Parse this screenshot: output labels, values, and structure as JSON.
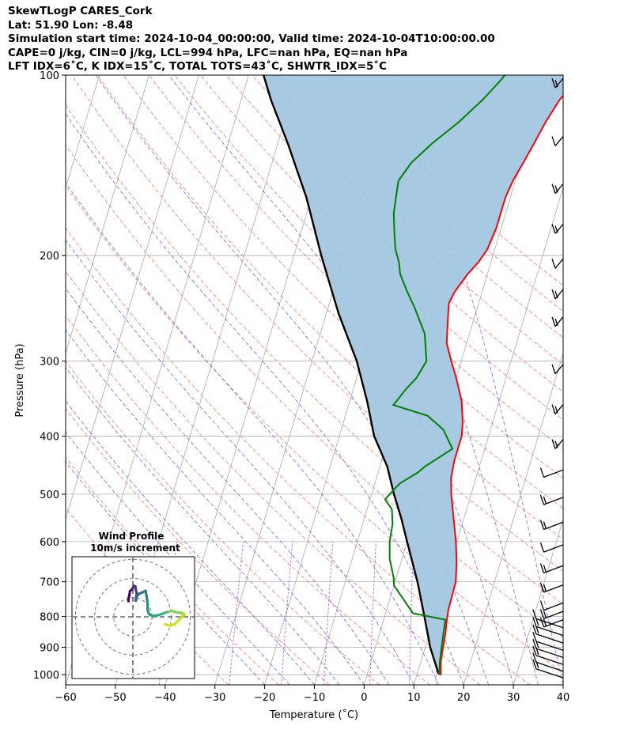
{
  "header": {
    "line1": "SkewTLogP CARES_Cork",
    "line2": "Lat: 51.90   Lon: -8.48",
    "line3": "Simulation start time: 2024-10-04_00:00:00, Valid time: 2024-10-04T10:00:00.00",
    "line4": "CAPE=0 j/kg, CIN=0 j/kg, LCL=994 hPa, LFC=nan hPa, EQ=nan hPa",
    "line5": "LFT IDX=6˚C, K IDX=15˚C, TOTAL TOTS=43˚C, SHWTR_IDX=5˚C"
  },
  "chart_data": [
    {
      "type": "line",
      "subtype": "skew-t log-p",
      "xlabel": "Temperature (˚C)",
      "ylabel": "Pressure (hPa)",
      "xlim": [
        -60,
        40
      ],
      "ylim": [
        1040,
        100
      ],
      "y_scale": "log",
      "x_ticks": [
        "−60",
        "−50",
        "−40",
        "−30",
        "−20",
        "−10",
        "0",
        "10",
        "20",
        "30",
        "40"
      ],
      "y_ticks": [
        "100",
        "200",
        "300",
        "400",
        "500",
        "600",
        "700",
        "800",
        "900",
        "1000"
      ],
      "grid": true,
      "colors": {
        "temperature": "#ff0000",
        "dewpoint": "#008000",
        "parcel": "#000000",
        "shading": "#a3c6e0",
        "dry_adiabats": "#ff6e6e",
        "moist_adiabats": "#5a5aff",
        "mixing_ratio": "#a040c0"
      },
      "series": [
        {
          "key": "temperature",
          "points": [
            [
              14.8,
              1000
            ],
            [
              14.0,
              950
            ],
            [
              13.6,
              900
            ],
            [
              13.2,
              850
            ],
            [
              12.8,
              820
            ],
            [
              12.6,
              800
            ],
            [
              12.4,
              780
            ],
            [
              12.2,
              700
            ],
            [
              11.2,
              650
            ],
            [
              9.8,
              600
            ],
            [
              8.0,
              550
            ],
            [
              6.0,
              500
            ],
            [
              5.0,
              470
            ],
            [
              4.6,
              440
            ],
            [
              4.6,
              400
            ],
            [
              4.0,
              380
            ],
            [
              2.5,
              350
            ],
            [
              0.0,
              320
            ],
            [
              -2.0,
              300
            ],
            [
              -4.0,
              280
            ],
            [
              -5.0,
              260
            ],
            [
              -6.0,
              240
            ],
            [
              -5.5,
              230
            ],
            [
              -4.0,
              215
            ],
            [
              -2.5,
              205
            ],
            [
              -1.5,
              195
            ],
            [
              -1.0,
              180
            ],
            [
              -1.0,
              170
            ],
            [
              -1.0,
              160
            ],
            [
              -0.5,
              150
            ],
            [
              0.5,
              140
            ],
            [
              1.5,
              130
            ],
            [
              2.5,
              120
            ],
            [
              4.0,
              110
            ],
            [
              6.0,
              103
            ],
            [
              7.0,
              100
            ]
          ]
        },
        {
          "key": "dewpoint",
          "points": [
            [
              14.5,
              1000
            ],
            [
              13.8,
              950
            ],
            [
              13.3,
              900
            ],
            [
              12.8,
              850
            ],
            [
              12.4,
              810
            ],
            [
              5.5,
              790
            ],
            [
              0.0,
              710
            ],
            [
              -0.5,
              690
            ],
            [
              -2.5,
              640
            ],
            [
              -3.5,
              600
            ],
            [
              -4.0,
              560
            ],
            [
              -5.0,
              530
            ],
            [
              -7.0,
              510
            ],
            [
              -5.0,
              480
            ],
            [
              -2.0,
              460
            ],
            [
              -1.0,
              450
            ],
            [
              3.5,
              420
            ],
            [
              0.5,
              390
            ],
            [
              -3.5,
              370
            ],
            [
              -11.0,
              355
            ],
            [
              -9.5,
              335
            ],
            [
              -8.0,
              320
            ],
            [
              -7.0,
              300
            ],
            [
              -9.0,
              270
            ],
            [
              -12.5,
              245
            ],
            [
              -15.0,
              230
            ],
            [
              -17.5,
              215
            ],
            [
              -18.5,
              205
            ],
            [
              -20.0,
              195
            ],
            [
              -21.0,
              185
            ],
            [
              -22.5,
              170
            ],
            [
              -23.0,
              160
            ],
            [
              -23.5,
              150
            ],
            [
              -22.0,
              140
            ],
            [
              -19.0,
              130
            ],
            [
              -15.0,
              120
            ],
            [
              -11.5,
              110
            ],
            [
              -9.0,
              102
            ],
            [
              -8.5,
              100
            ]
          ]
        },
        {
          "key": "parcel",
          "points": [
            [
              14.8,
              1000
            ],
            [
              14.2,
              994
            ],
            [
              11.0,
              900
            ],
            [
              8.0,
              800
            ],
            [
              4.5,
              700
            ],
            [
              0.0,
              600
            ],
            [
              -2.5,
              550
            ],
            [
              -5.5,
              500
            ],
            [
              -8.5,
              450
            ],
            [
              -13.0,
              400
            ],
            [
              -16.5,
              350
            ],
            [
              -21.0,
              300
            ],
            [
              -27.5,
              250
            ],
            [
              -34.5,
              200
            ],
            [
              -41.0,
              160
            ],
            [
              -48.0,
              130
            ],
            [
              -54.0,
              110
            ],
            [
              -57.0,
              100
            ]
          ]
        }
      ],
      "wind_barbs": [
        "1000",
        "975",
        "950",
        "925",
        "900",
        "875",
        "850",
        "825",
        "800",
        "775",
        "750",
        "700",
        "650",
        "600",
        "550",
        "500",
        "450",
        "400",
        "350",
        "300",
        "250",
        "225",
        "200",
        "175",
        "150",
        "125",
        "100"
      ],
      "hodograph": {
        "title": "Wind Profile",
        "subtitle": "10m/s increment",
        "points": [
          [
            6.5,
            -1.5
          ],
          [
            7.5,
            -1.8
          ],
          [
            8.5,
            -1.5
          ],
          [
            9.5,
            -0.5
          ],
          [
            10.5,
            0.5
          ],
          [
            10,
            0.8
          ],
          [
            9,
            0.9
          ],
          [
            8,
            1.2
          ],
          [
            7,
            1.0
          ],
          [
            6.5,
            0.8
          ],
          [
            6,
            0.6
          ],
          [
            5,
            0.3
          ],
          [
            4,
            0.2
          ],
          [
            3.5,
            0.4
          ],
          [
            3.2,
            0.7
          ],
          [
            3.0,
            1.5
          ],
          [
            3.0,
            2.5
          ],
          [
            2.9,
            3.5
          ],
          [
            2.6,
            5.3
          ],
          [
            2.0,
            5.0
          ],
          [
            1.5,
            4.8
          ],
          [
            1.0,
            4.5
          ],
          [
            0.7,
            4.0
          ],
          [
            0.6,
            3.3
          ],
          [
            0.8,
            4.8
          ],
          [
            0.6,
            5.5
          ],
          [
            0.5,
            6.2
          ],
          [
            0.2,
            6.3
          ],
          [
            0.0,
            5.9
          ],
          [
            -0.3,
            5.5
          ],
          [
            -0.6,
            5.2
          ],
          [
            -0.7,
            4.5
          ],
          [
            -0.9,
            3.6
          ],
          [
            -0.9,
            3.2
          ]
        ]
      }
    }
  ]
}
